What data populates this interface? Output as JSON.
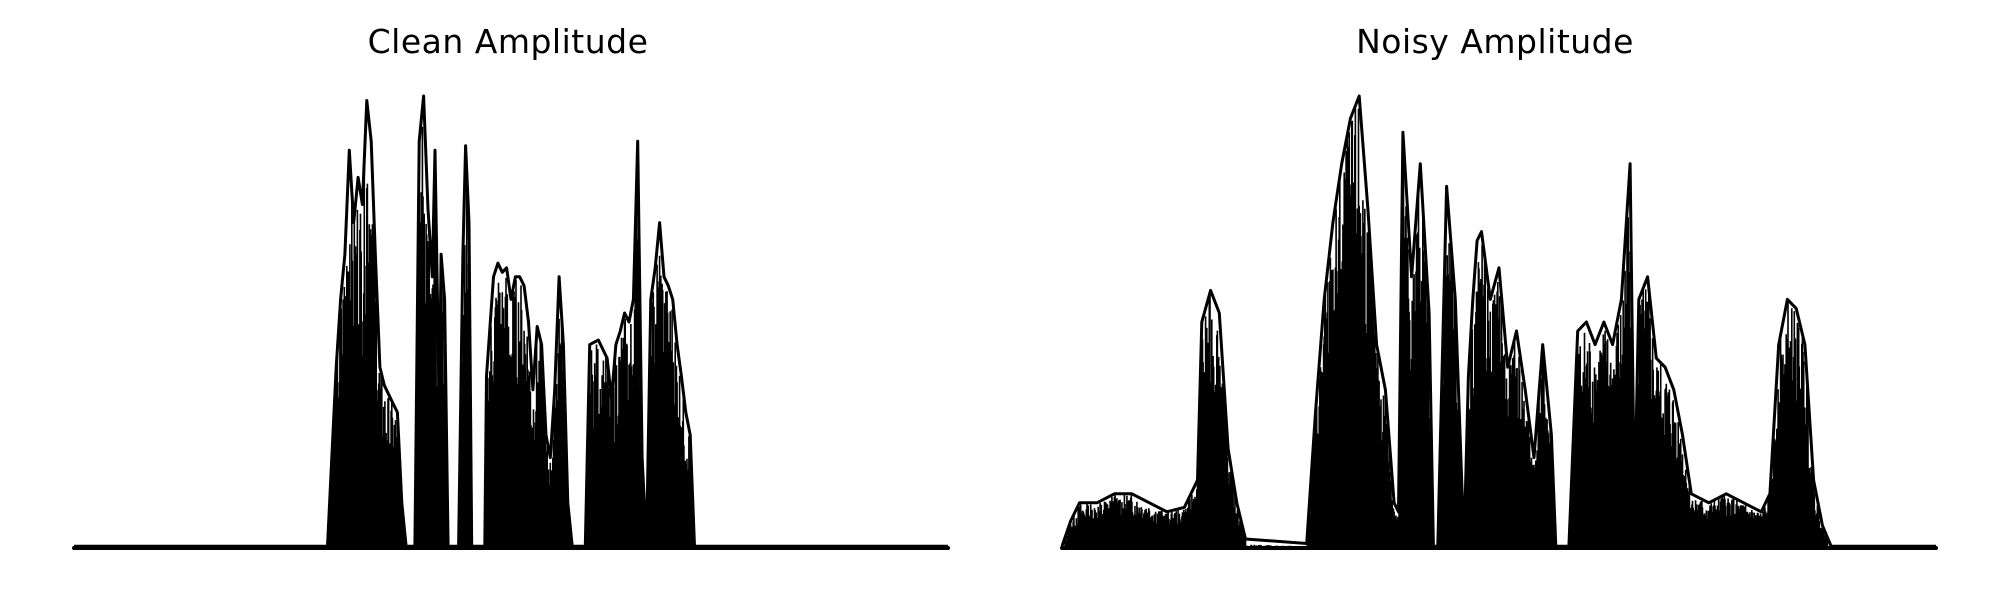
{
  "chart_data": [
    {
      "type": "line",
      "title": "Clean Amplitude",
      "xlabel": "",
      "ylabel": "",
      "axes_visible": false,
      "grid": false,
      "color": "#000000",
      "ylim": [
        0,
        1.0
      ],
      "envelope": [
        [
          0.0,
          0.0
        ],
        [
          0.29,
          0.0
        ],
        [
          0.295,
          0.2
        ],
        [
          0.3,
          0.4
        ],
        [
          0.305,
          0.55
        ],
        [
          0.31,
          0.65
        ],
        [
          0.315,
          0.88
        ],
        [
          0.32,
          0.72
        ],
        [
          0.325,
          0.82
        ],
        [
          0.33,
          0.76
        ],
        [
          0.335,
          0.99
        ],
        [
          0.34,
          0.9
        ],
        [
          0.345,
          0.64
        ],
        [
          0.35,
          0.4
        ],
        [
          0.355,
          0.36
        ],
        [
          0.36,
          0.34
        ],
        [
          0.365,
          0.32
        ],
        [
          0.37,
          0.3
        ],
        [
          0.375,
          0.1
        ],
        [
          0.38,
          0.0
        ],
        [
          0.39,
          0.0
        ],
        [
          0.395,
          0.9
        ],
        [
          0.4,
          1.0
        ],
        [
          0.405,
          0.75
        ],
        [
          0.41,
          0.6
        ],
        [
          0.413,
          0.88
        ],
        [
          0.418,
          0.3
        ],
        [
          0.42,
          0.65
        ],
        [
          0.424,
          0.55
        ],
        [
          0.428,
          0.0
        ],
        [
          0.44,
          0.0
        ],
        [
          0.445,
          0.65
        ],
        [
          0.448,
          0.89
        ],
        [
          0.452,
          0.72
        ],
        [
          0.455,
          0.0
        ],
        [
          0.47,
          0.0
        ],
        [
          0.472,
          0.38
        ],
        [
          0.48,
          0.6
        ],
        [
          0.485,
          0.63
        ],
        [
          0.49,
          0.61
        ],
        [
          0.495,
          0.62
        ],
        [
          0.5,
          0.55
        ],
        [
          0.505,
          0.6
        ],
        [
          0.51,
          0.6
        ],
        [
          0.515,
          0.58
        ],
        [
          0.52,
          0.5
        ],
        [
          0.525,
          0.35
        ],
        [
          0.53,
          0.49
        ],
        [
          0.535,
          0.45
        ],
        [
          0.54,
          0.25
        ],
        [
          0.545,
          0.2
        ],
        [
          0.55,
          0.35
        ],
        [
          0.555,
          0.6
        ],
        [
          0.56,
          0.45
        ],
        [
          0.565,
          0.1
        ],
        [
          0.57,
          0.0
        ],
        [
          0.585,
          0.0
        ],
        [
          0.59,
          0.45
        ],
        [
          0.6,
          0.46
        ],
        [
          0.61,
          0.42
        ],
        [
          0.615,
          0.33
        ],
        [
          0.62,
          0.45
        ],
        [
          0.625,
          0.48
        ],
        [
          0.63,
          0.52
        ],
        [
          0.635,
          0.5
        ],
        [
          0.64,
          0.55
        ],
        [
          0.645,
          0.9
        ],
        [
          0.65,
          0.2
        ],
        [
          0.655,
          0.0
        ],
        [
          0.66,
          0.55
        ],
        [
          0.665,
          0.62
        ],
        [
          0.67,
          0.72
        ],
        [
          0.675,
          0.6
        ],
        [
          0.68,
          0.58
        ],
        [
          0.685,
          0.55
        ],
        [
          0.69,
          0.45
        ],
        [
          0.695,
          0.38
        ],
        [
          0.7,
          0.3
        ],
        [
          0.705,
          0.25
        ],
        [
          0.71,
          0.0
        ],
        [
          0.75,
          0.0
        ],
        [
          1.0,
          0.0
        ]
      ]
    },
    {
      "type": "line",
      "title": "Noisy Amplitude",
      "xlabel": "",
      "ylabel": "",
      "axes_visible": false,
      "grid": false,
      "color": "#000000",
      "ylim": [
        0,
        1.0
      ],
      "envelope": [
        [
          0.0,
          0.0
        ],
        [
          0.01,
          0.06
        ],
        [
          0.02,
          0.1
        ],
        [
          0.04,
          0.1
        ],
        [
          0.06,
          0.12
        ],
        [
          0.08,
          0.12
        ],
        [
          0.1,
          0.1
        ],
        [
          0.12,
          0.08
        ],
        [
          0.14,
          0.09
        ],
        [
          0.155,
          0.15
        ],
        [
          0.16,
          0.5
        ],
        [
          0.17,
          0.57
        ],
        [
          0.18,
          0.52
        ],
        [
          0.19,
          0.22
        ],
        [
          0.2,
          0.1
        ],
        [
          0.21,
          0.02
        ],
        [
          0.28,
          0.01
        ],
        [
          0.29,
          0.3
        ],
        [
          0.3,
          0.55
        ],
        [
          0.31,
          0.72
        ],
        [
          0.32,
          0.85
        ],
        [
          0.33,
          0.95
        ],
        [
          0.34,
          1.0
        ],
        [
          0.35,
          0.75
        ],
        [
          0.36,
          0.45
        ],
        [
          0.37,
          0.35
        ],
        [
          0.38,
          0.1
        ],
        [
          0.385,
          0.08
        ],
        [
          0.39,
          0.92
        ],
        [
          0.4,
          0.6
        ],
        [
          0.41,
          0.85
        ],
        [
          0.42,
          0.52
        ],
        [
          0.425,
          0.0
        ],
        [
          0.43,
          0.0
        ],
        [
          0.44,
          0.8
        ],
        [
          0.45,
          0.55
        ],
        [
          0.46,
          0.0
        ],
        [
          0.465,
          0.38
        ],
        [
          0.47,
          0.55
        ],
        [
          0.475,
          0.68
        ],
        [
          0.48,
          0.7
        ],
        [
          0.49,
          0.55
        ],
        [
          0.5,
          0.62
        ],
        [
          0.51,
          0.4
        ],
        [
          0.52,
          0.48
        ],
        [
          0.53,
          0.35
        ],
        [
          0.54,
          0.2
        ],
        [
          0.55,
          0.45
        ],
        [
          0.56,
          0.25
        ],
        [
          0.565,
          0.0
        ],
        [
          0.58,
          0.0
        ],
        [
          0.59,
          0.48
        ],
        [
          0.6,
          0.5
        ],
        [
          0.61,
          0.45
        ],
        [
          0.62,
          0.5
        ],
        [
          0.63,
          0.45
        ],
        [
          0.64,
          0.55
        ],
        [
          0.65,
          0.85
        ],
        [
          0.655,
          0.08
        ],
        [
          0.66,
          0.55
        ],
        [
          0.67,
          0.6
        ],
        [
          0.68,
          0.42
        ],
        [
          0.69,
          0.4
        ],
        [
          0.7,
          0.35
        ],
        [
          0.71,
          0.25
        ],
        [
          0.72,
          0.12
        ],
        [
          0.74,
          0.1
        ],
        [
          0.76,
          0.12
        ],
        [
          0.78,
          0.1
        ],
        [
          0.8,
          0.08
        ],
        [
          0.81,
          0.12
        ],
        [
          0.82,
          0.45
        ],
        [
          0.83,
          0.55
        ],
        [
          0.84,
          0.53
        ],
        [
          0.85,
          0.45
        ],
        [
          0.86,
          0.15
        ],
        [
          0.87,
          0.05
        ],
        [
          0.88,
          0.0
        ],
        [
          1.0,
          0.0
        ]
      ]
    }
  ]
}
